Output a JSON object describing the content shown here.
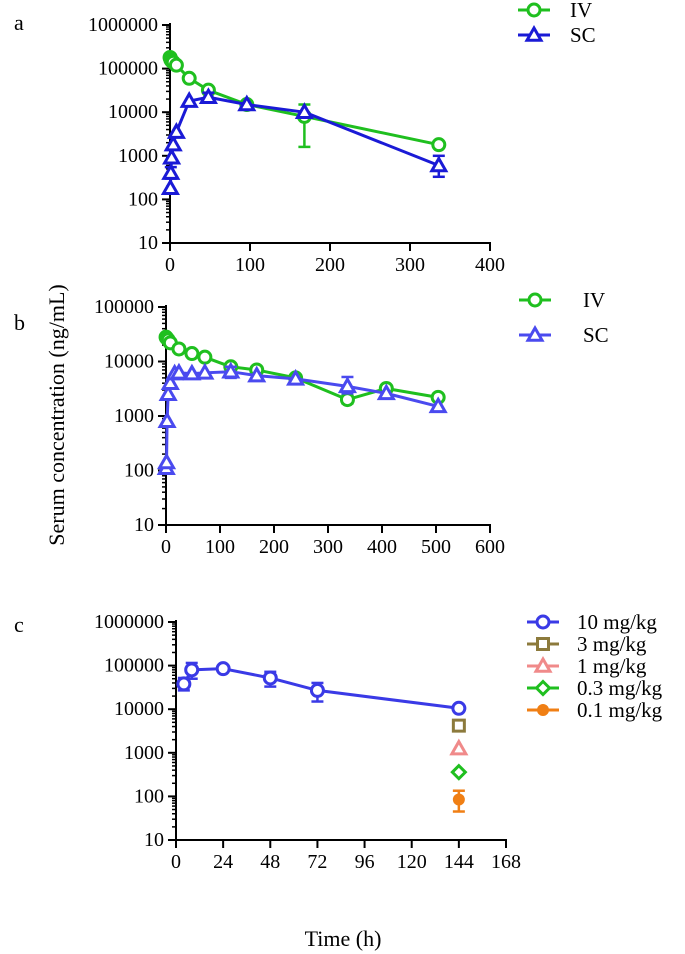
{
  "figure": {
    "shared_ylabel": "Serum concentration (ng/mL)",
    "shared_xlabel": "Time (h)"
  },
  "chart_data": [
    {
      "panel": "a",
      "type": "line",
      "yscale": "log",
      "xlim": [
        0,
        400
      ],
      "ylim": [
        10,
        1000000
      ],
      "xticks": [
        0,
        100,
        200,
        300,
        400
      ],
      "yticks": [
        10,
        100,
        1000,
        10000,
        100000,
        1000000
      ],
      "legend_position": "top-right",
      "series": [
        {
          "name": "IV",
          "color": "#1fbf1f",
          "marker": "circle-open",
          "x": [
            0.08,
            0.5,
            1,
            2,
            4,
            8,
            24,
            48,
            96,
            168,
            336
          ],
          "y": [
            180000,
            175000,
            160000,
            150000,
            140000,
            120000,
            60000,
            32000,
            15000,
            8000,
            1800
          ],
          "err_low": [
            null,
            null,
            null,
            null,
            null,
            null,
            null,
            null,
            null,
            1600,
            null
          ],
          "err_high": [
            null,
            null,
            null,
            null,
            null,
            null,
            null,
            null,
            null,
            15000,
            null
          ]
        },
        {
          "name": "SC",
          "color": "#1a1ad6",
          "marker": "triangle-open",
          "x": [
            0.5,
            1,
            2,
            4,
            8,
            24,
            48,
            96,
            168,
            336
          ],
          "y": [
            180,
            400,
            900,
            1800,
            3500,
            18000,
            22000,
            15000,
            10000,
            600
          ],
          "err_low": [
            null,
            300,
            null,
            null,
            null,
            null,
            17000,
            null,
            null,
            330
          ],
          "err_high": [
            null,
            550,
            null,
            null,
            null,
            null,
            28000,
            null,
            null,
            1000
          ]
        }
      ]
    },
    {
      "panel": "b",
      "type": "line",
      "yscale": "log",
      "xlim": [
        0,
        600
      ],
      "ylim": [
        10,
        100000
      ],
      "xticks": [
        0,
        100,
        200,
        300,
        400,
        500,
        600
      ],
      "yticks": [
        10,
        100,
        1000,
        10000,
        100000
      ],
      "legend_position": "top-right",
      "series": [
        {
          "name": "IV",
          "color": "#1fbf1f",
          "marker": "circle-open",
          "x": [
            0.08,
            1,
            4,
            8,
            24,
            48,
            72,
            120,
            168,
            240,
            336,
            408,
            504
          ],
          "y": [
            28000,
            27000,
            25000,
            22000,
            17000,
            14000,
            12000,
            8000,
            7000,
            5000,
            2000,
            3200,
            2200
          ],
          "err_low": [
            null,
            null,
            null,
            null,
            null,
            null,
            null,
            null,
            null,
            null,
            1700,
            null,
            null
          ],
          "err_high": [
            null,
            null,
            null,
            null,
            null,
            null,
            null,
            null,
            null,
            null,
            2400,
            null,
            null
          ]
        },
        {
          "name": "SC",
          "color": "#4a4aef",
          "marker": "triangle-open",
          "x": [
            0.5,
            1,
            2,
            4,
            8,
            16,
            24,
            48,
            72,
            120,
            168,
            240,
            336,
            408,
            504
          ],
          "y": [
            110,
            140,
            800,
            2500,
            4000,
            6000,
            6200,
            6000,
            6200,
            6500,
            5500,
            4800,
            3500,
            2600,
            1500
          ],
          "err_low": [
            null,
            null,
            null,
            null,
            null,
            null,
            null,
            null,
            null,
            5000,
            null,
            null,
            2600,
            null,
            null
          ],
          "err_high": [
            null,
            null,
            null,
            null,
            null,
            null,
            null,
            null,
            null,
            8000,
            null,
            null,
            5200,
            null,
            null
          ]
        }
      ]
    },
    {
      "panel": "c",
      "type": "line",
      "yscale": "log",
      "xlim": [
        0,
        168
      ],
      "ylim": [
        10,
        1000000
      ],
      "xticks": [
        0,
        24,
        48,
        72,
        96,
        120,
        144,
        168
      ],
      "yticks": [
        10,
        100,
        1000,
        10000,
        100000,
        1000000
      ],
      "legend_position": "top-right",
      "series": [
        {
          "name": "10 mg/kg",
          "color": "#3a3ae6",
          "marker": "circle-open",
          "x": [
            4,
            8,
            24,
            48,
            72,
            144
          ],
          "y": [
            38000,
            80000,
            85000,
            52000,
            27000,
            10500
          ],
          "err_low": [
            27000,
            50000,
            null,
            33000,
            15000,
            null
          ],
          "err_high": [
            52000,
            115000,
            null,
            72000,
            40000,
            null
          ]
        },
        {
          "name": "3 mg/kg",
          "color": "#8c7a3c",
          "marker": "square-open",
          "x": [
            144
          ],
          "y": [
            4200
          ],
          "err_low": [
            null
          ],
          "err_high": [
            null
          ]
        },
        {
          "name": "1 mg/kg",
          "color": "#f08a8a",
          "marker": "triangle-open",
          "x": [
            144
          ],
          "y": [
            1250
          ],
          "err_low": [
            null
          ],
          "err_high": [
            null
          ]
        },
        {
          "name": "0.3 mg/kg",
          "color": "#1fbf1f",
          "marker": "diamond-open",
          "x": [
            144
          ],
          "y": [
            360
          ],
          "err_low": [
            null
          ],
          "err_high": [
            null
          ]
        },
        {
          "name": "0.1 mg/kg",
          "color": "#f07f14",
          "marker": "circle-filled",
          "x": [
            144
          ],
          "y": [
            85
          ],
          "err_low": [
            45
          ],
          "err_high": [
            135
          ]
        }
      ]
    }
  ]
}
